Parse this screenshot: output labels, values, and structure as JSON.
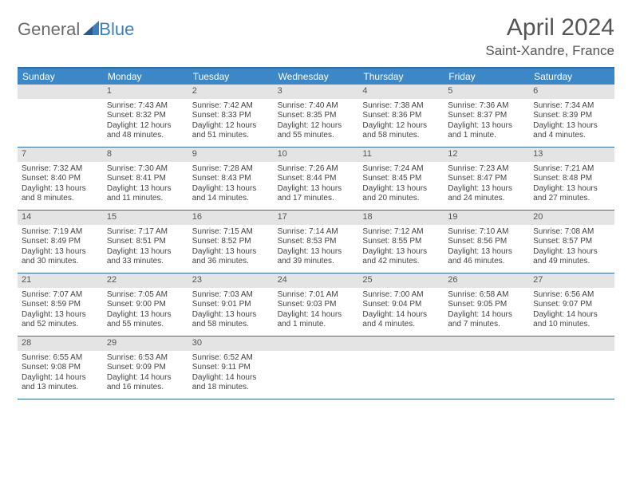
{
  "logo": {
    "text1": "General",
    "text2": "Blue"
  },
  "title": "April 2024",
  "location": "Saint-Xandre, France",
  "colors": {
    "header_bg": "#3b87c8",
    "header_text": "#ffffff",
    "rule": "#2f6fa8",
    "daynum_bg": "#e4e4e4",
    "body_text": "#444444"
  },
  "dow": [
    "Sunday",
    "Monday",
    "Tuesday",
    "Wednesday",
    "Thursday",
    "Friday",
    "Saturday"
  ],
  "weeks": [
    [
      {
        "n": "",
        "sr": "",
        "ss": "",
        "dl": ""
      },
      {
        "n": "1",
        "sr": "Sunrise: 7:43 AM",
        "ss": "Sunset: 8:32 PM",
        "dl": "Daylight: 12 hours and 48 minutes."
      },
      {
        "n": "2",
        "sr": "Sunrise: 7:42 AM",
        "ss": "Sunset: 8:33 PM",
        "dl": "Daylight: 12 hours and 51 minutes."
      },
      {
        "n": "3",
        "sr": "Sunrise: 7:40 AM",
        "ss": "Sunset: 8:35 PM",
        "dl": "Daylight: 12 hours and 55 minutes."
      },
      {
        "n": "4",
        "sr": "Sunrise: 7:38 AM",
        "ss": "Sunset: 8:36 PM",
        "dl": "Daylight: 12 hours and 58 minutes."
      },
      {
        "n": "5",
        "sr": "Sunrise: 7:36 AM",
        "ss": "Sunset: 8:37 PM",
        "dl": "Daylight: 13 hours and 1 minute."
      },
      {
        "n": "6",
        "sr": "Sunrise: 7:34 AM",
        "ss": "Sunset: 8:39 PM",
        "dl": "Daylight: 13 hours and 4 minutes."
      }
    ],
    [
      {
        "n": "7",
        "sr": "Sunrise: 7:32 AM",
        "ss": "Sunset: 8:40 PM",
        "dl": "Daylight: 13 hours and 8 minutes."
      },
      {
        "n": "8",
        "sr": "Sunrise: 7:30 AM",
        "ss": "Sunset: 8:41 PM",
        "dl": "Daylight: 13 hours and 11 minutes."
      },
      {
        "n": "9",
        "sr": "Sunrise: 7:28 AM",
        "ss": "Sunset: 8:43 PM",
        "dl": "Daylight: 13 hours and 14 minutes."
      },
      {
        "n": "10",
        "sr": "Sunrise: 7:26 AM",
        "ss": "Sunset: 8:44 PM",
        "dl": "Daylight: 13 hours and 17 minutes."
      },
      {
        "n": "11",
        "sr": "Sunrise: 7:24 AM",
        "ss": "Sunset: 8:45 PM",
        "dl": "Daylight: 13 hours and 20 minutes."
      },
      {
        "n": "12",
        "sr": "Sunrise: 7:23 AM",
        "ss": "Sunset: 8:47 PM",
        "dl": "Daylight: 13 hours and 24 minutes."
      },
      {
        "n": "13",
        "sr": "Sunrise: 7:21 AM",
        "ss": "Sunset: 8:48 PM",
        "dl": "Daylight: 13 hours and 27 minutes."
      }
    ],
    [
      {
        "n": "14",
        "sr": "Sunrise: 7:19 AM",
        "ss": "Sunset: 8:49 PM",
        "dl": "Daylight: 13 hours and 30 minutes."
      },
      {
        "n": "15",
        "sr": "Sunrise: 7:17 AM",
        "ss": "Sunset: 8:51 PM",
        "dl": "Daylight: 13 hours and 33 minutes."
      },
      {
        "n": "16",
        "sr": "Sunrise: 7:15 AM",
        "ss": "Sunset: 8:52 PM",
        "dl": "Daylight: 13 hours and 36 minutes."
      },
      {
        "n": "17",
        "sr": "Sunrise: 7:14 AM",
        "ss": "Sunset: 8:53 PM",
        "dl": "Daylight: 13 hours and 39 minutes."
      },
      {
        "n": "18",
        "sr": "Sunrise: 7:12 AM",
        "ss": "Sunset: 8:55 PM",
        "dl": "Daylight: 13 hours and 42 minutes."
      },
      {
        "n": "19",
        "sr": "Sunrise: 7:10 AM",
        "ss": "Sunset: 8:56 PM",
        "dl": "Daylight: 13 hours and 46 minutes."
      },
      {
        "n": "20",
        "sr": "Sunrise: 7:08 AM",
        "ss": "Sunset: 8:57 PM",
        "dl": "Daylight: 13 hours and 49 minutes."
      }
    ],
    [
      {
        "n": "21",
        "sr": "Sunrise: 7:07 AM",
        "ss": "Sunset: 8:59 PM",
        "dl": "Daylight: 13 hours and 52 minutes."
      },
      {
        "n": "22",
        "sr": "Sunrise: 7:05 AM",
        "ss": "Sunset: 9:00 PM",
        "dl": "Daylight: 13 hours and 55 minutes."
      },
      {
        "n": "23",
        "sr": "Sunrise: 7:03 AM",
        "ss": "Sunset: 9:01 PM",
        "dl": "Daylight: 13 hours and 58 minutes."
      },
      {
        "n": "24",
        "sr": "Sunrise: 7:01 AM",
        "ss": "Sunset: 9:03 PM",
        "dl": "Daylight: 14 hours and 1 minute."
      },
      {
        "n": "25",
        "sr": "Sunrise: 7:00 AM",
        "ss": "Sunset: 9:04 PM",
        "dl": "Daylight: 14 hours and 4 minutes."
      },
      {
        "n": "26",
        "sr": "Sunrise: 6:58 AM",
        "ss": "Sunset: 9:05 PM",
        "dl": "Daylight: 14 hours and 7 minutes."
      },
      {
        "n": "27",
        "sr": "Sunrise: 6:56 AM",
        "ss": "Sunset: 9:07 PM",
        "dl": "Daylight: 14 hours and 10 minutes."
      }
    ],
    [
      {
        "n": "28",
        "sr": "Sunrise: 6:55 AM",
        "ss": "Sunset: 9:08 PM",
        "dl": "Daylight: 14 hours and 13 minutes."
      },
      {
        "n": "29",
        "sr": "Sunrise: 6:53 AM",
        "ss": "Sunset: 9:09 PM",
        "dl": "Daylight: 14 hours and 16 minutes."
      },
      {
        "n": "30",
        "sr": "Sunrise: 6:52 AM",
        "ss": "Sunset: 9:11 PM",
        "dl": "Daylight: 14 hours and 18 minutes."
      },
      {
        "n": "",
        "sr": "",
        "ss": "",
        "dl": ""
      },
      {
        "n": "",
        "sr": "",
        "ss": "",
        "dl": ""
      },
      {
        "n": "",
        "sr": "",
        "ss": "",
        "dl": ""
      },
      {
        "n": "",
        "sr": "",
        "ss": "",
        "dl": ""
      }
    ]
  ]
}
